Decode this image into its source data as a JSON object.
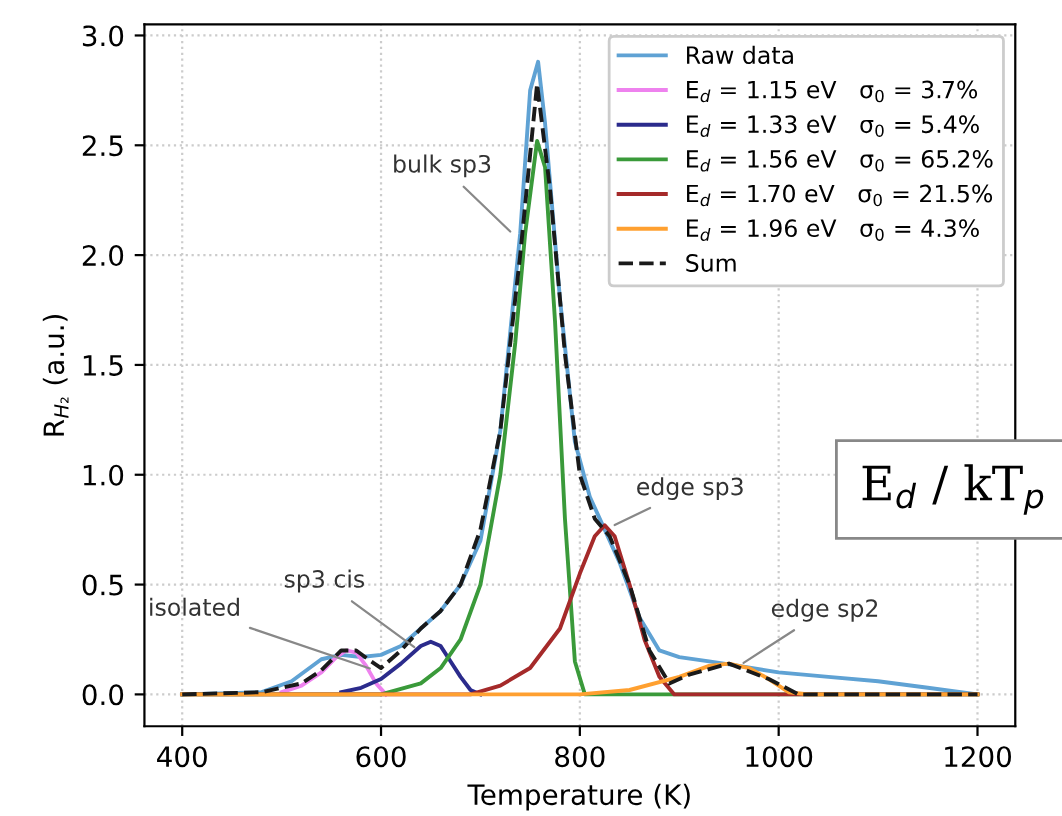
{
  "chart_data": {
    "type": "line",
    "xlabel": "Temperature (K)",
    "ylabel": "R$_{H₂}$ (a.u.)",
    "xlim": [
      362,
      1238
    ],
    "ylim": [
      -0.145,
      3.05
    ],
    "xticks": [
      400,
      600,
      800,
      1000,
      1200
    ],
    "yticks": [
      {
        "value": 0,
        "label": "0.0"
      },
      0.5,
      {
        "value": 1,
        "label": "1.0"
      },
      1.5,
      {
        "value": 2,
        "label": "2.0"
      },
      2.5,
      {
        "value": 3,
        "label": "3.0"
      }
    ],
    "grid": true,
    "legend": "top right",
    "line_style": "solid",
    "marker": "none",
    "series": [
      {
        "name": "Raw data",
        "color": "#5fa2d4",
        "x": [
          400,
          480,
          510,
          540,
          560,
          580,
          600,
          620,
          640,
          660,
          680,
          700,
          720,
          740,
          750,
          758,
          765,
          780,
          795,
          810,
          825,
          840,
          860,
          880,
          900,
          930,
          960,
          1000,
          1050,
          1100,
          1150,
          1200
        ],
        "values": [
          0,
          0.01,
          0.06,
          0.16,
          0.18,
          0.17,
          0.18,
          0.22,
          0.3,
          0.38,
          0.5,
          0.7,
          1.2,
          2.1,
          2.75,
          2.88,
          2.6,
          1.8,
          1.15,
          0.9,
          0.75,
          0.6,
          0.35,
          0.2,
          0.17,
          0.15,
          0.13,
          0.1,
          0.08,
          0.06,
          0.03,
          0
        ]
      },
      {
        "name": "E$_{d}$ = 1.15 eV   σ$_{0}$ = 3.7%",
        "color": "#ee82ee",
        "x": [
          500,
          520,
          540,
          555,
          565,
          575,
          585,
          595,
          605
        ],
        "values": [
          0.01,
          0.04,
          0.1,
          0.17,
          0.2,
          0.19,
          0.13,
          0.05,
          0
        ]
      },
      {
        "name": "E$_{d}$ = 1.33 eV   σ$_{0}$ = 5.4%",
        "color": "#2b2b8c",
        "x": [
          560,
          580,
          600,
          620,
          640,
          650,
          660,
          670,
          680,
          690,
          700
        ],
        "values": [
          0.01,
          0.03,
          0.07,
          0.14,
          0.22,
          0.24,
          0.22,
          0.15,
          0.08,
          0.02,
          0
        ]
      },
      {
        "name": "E$_{d}$ = 1.56 eV   σ$_{0}$ = 65.2%",
        "color": "#3a9a3a",
        "x": [
          400,
          600,
          640,
          660,
          680,
          700,
          720,
          735,
          745,
          757,
          765,
          775,
          785,
          795,
          805,
          1200
        ],
        "values": [
          0,
          0,
          0.05,
          0.12,
          0.25,
          0.5,
          1.0,
          1.6,
          2.1,
          2.52,
          2.4,
          1.7,
          0.8,
          0.15,
          0,
          0
        ]
      },
      {
        "name": "E$_{d}$ = 1.70 eV   σ$_{0}$ = 21.5%",
        "color": "#a52a2a",
        "x": [
          400,
          690,
          720,
          750,
          780,
          800,
          815,
          825,
          835,
          850,
          865,
          880,
          895,
          1200
        ],
        "values": [
          0,
          0,
          0.04,
          0.12,
          0.3,
          0.55,
          0.72,
          0.77,
          0.72,
          0.5,
          0.25,
          0.08,
          0,
          0
        ]
      },
      {
        "name": "E$_{d}$ = 1.96 eV   σ$_{0}$ = 4.3%",
        "color": "#ffa030",
        "x": [
          400,
          800,
          850,
          900,
          930,
          950,
          970,
          990,
          1010,
          1030,
          1200
        ],
        "values": [
          0,
          0,
          0.02,
          0.08,
          0.13,
          0.14,
          0.12,
          0.07,
          0.01,
          0,
          0
        ]
      },
      {
        "name": "Sum",
        "color": "#1a1a1a",
        "line_style": "dashed",
        "x": [
          400,
          480,
          520,
          540,
          560,
          575,
          590,
          600,
          620,
          640,
          660,
          680,
          700,
          720,
          740,
          757,
          770,
          785,
          800,
          815,
          830,
          850,
          870,
          890,
          910,
          950,
          990,
          1020,
          1200
        ],
        "values": [
          0,
          0.01,
          0.05,
          0.11,
          0.2,
          0.2,
          0.15,
          0.12,
          0.2,
          0.3,
          0.38,
          0.5,
          0.75,
          1.2,
          2.0,
          2.78,
          2.3,
          1.55,
          1.0,
          0.8,
          0.72,
          0.5,
          0.2,
          0.05,
          0.09,
          0.14,
          0.07,
          0,
          0
        ]
      }
    ],
    "annotations": [
      {
        "text": "bulk sp3",
        "x": 734,
        "y": 2.09
      },
      {
        "text": "sp3 cis",
        "x": 638,
        "y": 0.2
      },
      {
        "text": "isolated",
        "x": 594,
        "y": 0.11
      },
      {
        "text": "edge sp3",
        "x": 830,
        "y": 0.76
      },
      {
        "text": "edge sp2",
        "x": 960,
        "y": 0.13
      },
      "E$_{d}$ / kT$_{p}$"
    ]
  }
}
